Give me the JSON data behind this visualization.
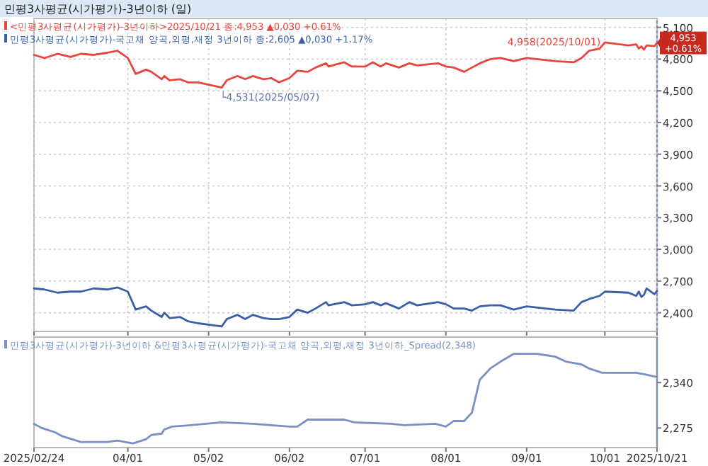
{
  "chart_data": [
    {
      "type": "line",
      "title": "민평3사평균(시가평가)-3년이하 (일)",
      "x": [
        "2025-02-24",
        "2025-02-28",
        "2025-03-05",
        "2025-03-10",
        "2025-03-14",
        "2025-03-19",
        "2025-03-24",
        "2025-03-28",
        "2025-04-01",
        "2025-04-04",
        "2025-04-08",
        "2025-04-10",
        "2025-04-14",
        "2025-04-15",
        "2025-04-17",
        "2025-04-21",
        "2025-04-24",
        "2025-04-28",
        "2025-05-07",
        "2025-05-09",
        "2025-05-13",
        "2025-05-16",
        "2025-05-19",
        "2025-05-23",
        "2025-05-26",
        "2025-05-29",
        "2025-06-02",
        "2025-06-05",
        "2025-06-09",
        "2025-06-12",
        "2025-06-16",
        "2025-06-17",
        "2025-06-23",
        "2025-06-26",
        "2025-07-01",
        "2025-07-04",
        "2025-07-07",
        "2025-07-09",
        "2025-07-14",
        "2025-07-18",
        "2025-07-21",
        "2025-07-29",
        "2025-08-01",
        "2025-08-04",
        "2025-08-08",
        "2025-08-11",
        "2025-08-14",
        "2025-08-18",
        "2025-08-22",
        "2025-08-27",
        "2025-09-01",
        "2025-09-12",
        "2025-09-19",
        "2025-09-22",
        "2025-09-25",
        "2025-09-29",
        "2025-10-01",
        "2025-10-10",
        "2025-10-13",
        "2025-10-14",
        "2025-10-15",
        "2025-10-16",
        "2025-10-17",
        "2025-10-20",
        "2025-10-21"
      ],
      "series": [
        {
          "name": "<민평3사평균(시가평가)-3년이하>2025/10/21 종:4,953 ▲0,030 +0.61%",
          "color": "#e8453c",
          "values": [
            4840,
            4810,
            4850,
            4820,
            4850,
            4840,
            4860,
            4880,
            4810,
            4660,
            4700,
            4680,
            4610,
            4640,
            4600,
            4610,
            4580,
            4580,
            4531,
            4600,
            4640,
            4610,
            4640,
            4610,
            4620,
            4580,
            4620,
            4690,
            4680,
            4720,
            4760,
            4730,
            4770,
            4730,
            4730,
            4770,
            4730,
            4760,
            4720,
            4760,
            4740,
            4760,
            4730,
            4720,
            4680,
            4720,
            4760,
            4800,
            4810,
            4780,
            4810,
            4780,
            4770,
            4810,
            4880,
            4900,
            4958,
            4930,
            4940,
            4900,
            4920,
            4890,
            4930,
            4923,
            4953
          ]
        },
        {
          "name": "민평3사평균(시가평가)-국고채 양곡,외평,재정 3년이하 종:2,605 ▲0,030 +1.17%",
          "color": "#3c5ea8",
          "values": [
            2630,
            2620,
            2590,
            2600,
            2600,
            2630,
            2620,
            2640,
            2600,
            2430,
            2460,
            2420,
            2360,
            2400,
            2350,
            2360,
            2320,
            2300,
            2270,
            2340,
            2380,
            2340,
            2380,
            2350,
            2340,
            2340,
            2360,
            2430,
            2400,
            2440,
            2500,
            2470,
            2500,
            2470,
            2480,
            2500,
            2470,
            2490,
            2440,
            2500,
            2470,
            2500,
            2480,
            2440,
            2440,
            2420,
            2460,
            2470,
            2470,
            2430,
            2460,
            2430,
            2420,
            2500,
            2530,
            2560,
            2600,
            2590,
            2560,
            2600,
            2550,
            2570,
            2630,
            2575,
            2605
          ]
        }
      ],
      "ylim": [
        2223,
        5185
      ],
      "yticks": [
        {
          "value": 5100,
          "label": "5,100"
        },
        {
          "value": 4800,
          "label": "4,800"
        },
        {
          "value": 4500,
          "label": "4,500"
        },
        {
          "value": 4200,
          "label": "4,200"
        },
        {
          "value": 3900,
          "label": "3,900"
        },
        {
          "value": 3600,
          "label": "3,600"
        },
        {
          "value": 3300,
          "label": "3,300"
        },
        {
          "value": 3000,
          "label": "3,000"
        },
        {
          "value": 2700,
          "label": "2,700"
        },
        {
          "value": 2400,
          "label": "2,400"
        }
      ],
      "xlim": [
        "2025-02-24",
        "2025-10-21"
      ],
      "xticks": [
        {
          "value": "2025-02-24",
          "label": null
        },
        {
          "value": "2025-04-01",
          "label": null
        },
        {
          "value": "2025-05-02",
          "label": null
        },
        {
          "value": "2025-06-02",
          "label": null
        },
        {
          "value": "2025-07-01",
          "label": null
        },
        {
          "value": "2025-08-01",
          "label": null
        },
        {
          "value": "2025-09-01",
          "label": null
        },
        {
          "value": "2025-10-01",
          "label": null
        },
        {
          "value": "2025-10-21",
          "label": null
        }
      ],
      "tick_labels": "y",
      "grid": true,
      "legend": "top left",
      "annotations": [
        {
          "text": "└4,531(2025/05/07)",
          "x": "2025-05-07",
          "y": 4531
        },
        {
          "text": "4,958(2025/10/01)",
          "x": "2025-10-01",
          "y": 4958
        },
        {
          "text": "4,953 +0.61%",
          "x": "2025-10-21",
          "y": 4953
        }
      ]
    },
    {
      "type": "line",
      "x": [
        "2025-02-24",
        "2025-02-27",
        "2025-03-04",
        "2025-03-07",
        "2025-03-14",
        "2025-03-24",
        "2025-03-28",
        "2025-04-03",
        "2025-04-08",
        "2025-04-10",
        "2025-04-14",
        "2025-04-15",
        "2025-04-18",
        "2025-04-25",
        "2025-05-07",
        "2025-05-19",
        "2025-06-02",
        "2025-06-05",
        "2025-06-09",
        "2025-06-23",
        "2025-06-27",
        "2025-07-11",
        "2025-07-16",
        "2025-07-28",
        "2025-08-01",
        "2025-08-04",
        "2025-08-08",
        "2025-08-11",
        "2025-08-14",
        "2025-08-18",
        "2025-08-22",
        "2025-08-27",
        "2025-09-05",
        "2025-09-12",
        "2025-09-16",
        "2025-09-22",
        "2025-09-25",
        "2025-09-30",
        "2025-10-13",
        "2025-10-16",
        "2025-10-21"
      ],
      "series": [
        {
          "name": "민평3사평균(시가평가)-3년이하 &민평3사평균(시가평가)-국고채 양곡,외평,재정 3년이하_Spread(2,348)",
          "color": "#7b8fc4",
          "values": [
            2281,
            2275,
            2269,
            2263,
            2255,
            2255,
            2257,
            2253,
            2259,
            2265,
            2267,
            2273,
            2277,
            2279,
            2283,
            2281,
            2277,
            2277,
            2287,
            2287,
            2283,
            2281,
            2279,
            2281,
            2277,
            2285,
            2285,
            2297,
            2344,
            2360,
            2370,
            2381,
            2381,
            2377,
            2370,
            2366,
            2360,
            2354,
            2354,
            2352,
            2348
          ]
        }
      ],
      "ylim": [
        2247,
        2405
      ],
      "yticks": [
        {
          "value": 2340,
          "label": "2,340"
        },
        {
          "value": 2275,
          "label": "2,275"
        }
      ],
      "xlim": [
        "2025-02-24",
        "2025-10-21"
      ],
      "xticks": [
        {
          "value": "2025-02-24",
          "label": "2025/02/24"
        },
        {
          "value": "2025-04-01",
          "label": "04/01"
        },
        {
          "value": "2025-05-02",
          "label": "05/02"
        },
        {
          "value": "2025-06-02",
          "label": "06/02"
        },
        {
          "value": "2025-07-01",
          "label": "07/01"
        },
        {
          "value": "2025-08-01",
          "label": "08/01"
        },
        {
          "value": "2025-09-01",
          "label": "09/01"
        },
        {
          "value": "2025-10-01",
          "label": "10/01"
        },
        {
          "value": "2025-10-21",
          "label": "2025/10/21"
        }
      ],
      "grid": false,
      "legend": "top left"
    }
  ]
}
